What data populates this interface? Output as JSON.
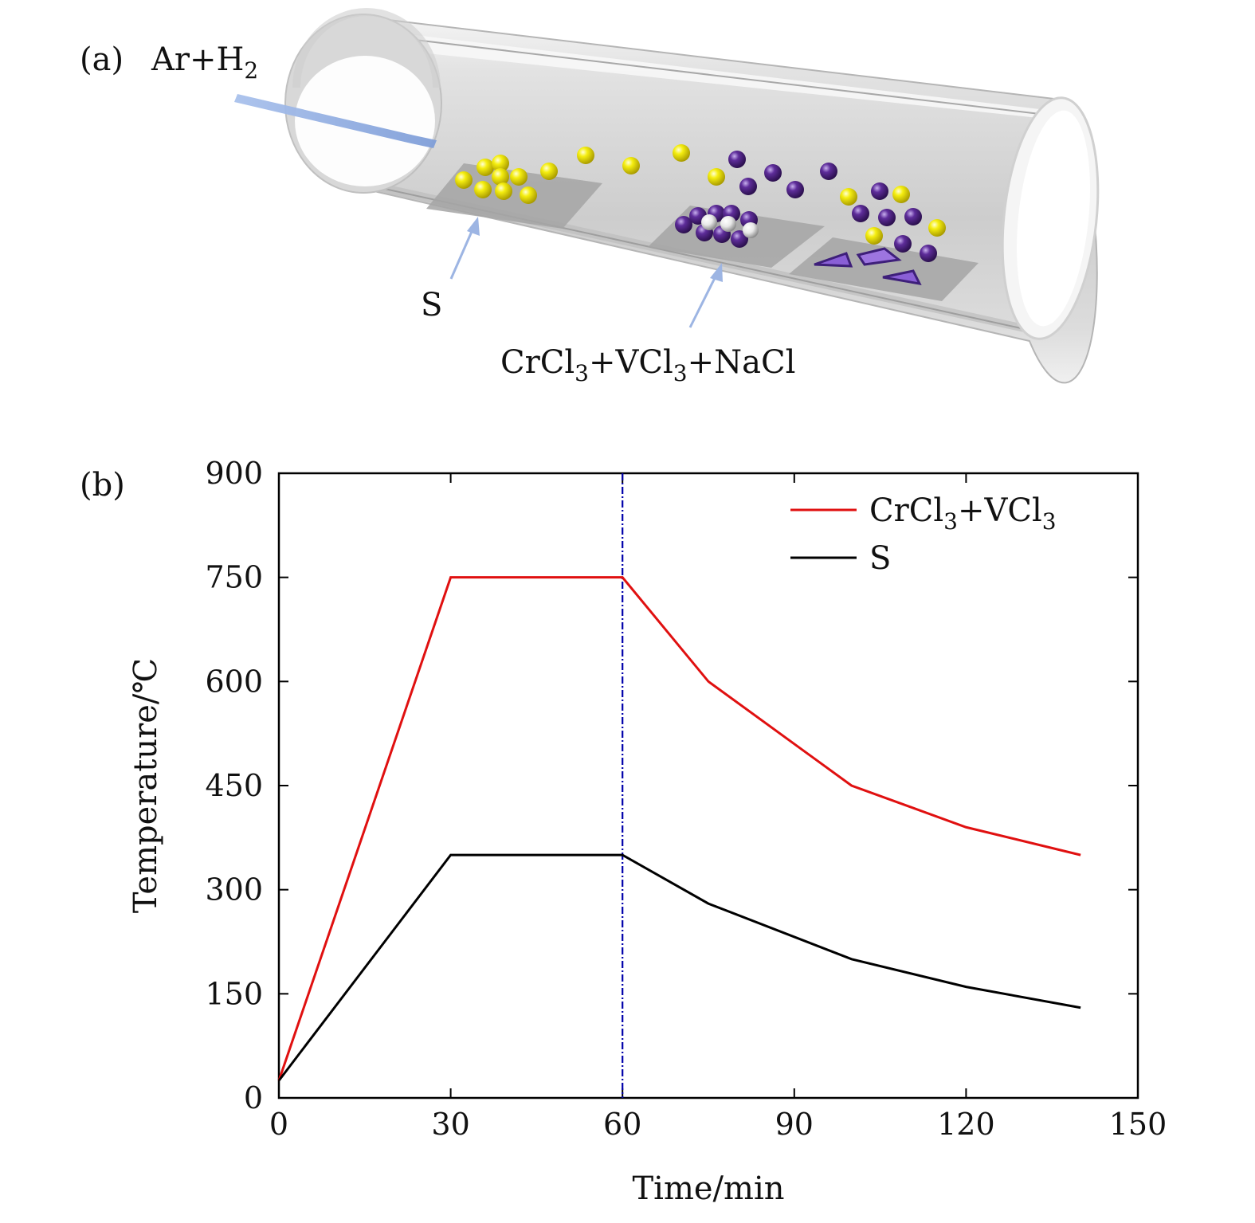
{
  "panel_a": {
    "label": "(a)",
    "gas_label": {
      "main": "Ar+H",
      "sub": "2"
    },
    "s_label": "S",
    "precursor_label": {
      "parts": [
        {
          "t": "CrCl",
          "sub": false
        },
        {
          "t": "3",
          "sub": true
        },
        {
          "t": "+VCl",
          "sub": false
        },
        {
          "t": "3",
          "sub": true
        },
        {
          "t": "+NaCl",
          "sub": false
        }
      ]
    },
    "colors": {
      "sulfur": "#f2ea00",
      "metal": "#5a2a96",
      "salt": "#e8e8e8",
      "arrow": "#9db5e3",
      "tube": "#d9d9d9"
    }
  },
  "panel_b": {
    "label": "(b)",
    "chart_data": {
      "type": "line",
      "xlabel": "Time/min",
      "ylabel": "Temperature/℃",
      "xlim": [
        0,
        150
      ],
      "ylim": [
        0,
        900
      ],
      "xticks": [
        0,
        30,
        60,
        90,
        120,
        150
      ],
      "yticks": [
        0,
        150,
        300,
        450,
        600,
        750,
        900
      ],
      "vline": {
        "x": 60,
        "color": "#0000aa",
        "style": "dash-dot"
      },
      "legend_position": "top-right",
      "series": [
        {
          "name": "CrCl3+VCl3",
          "legend_parts": [
            {
              "t": "CrCl",
              "sub": false
            },
            {
              "t": "3",
              "sub": true
            },
            {
              "t": "+VCl",
              "sub": false
            },
            {
              "t": "3",
              "sub": true
            }
          ],
          "color": "#e01010",
          "x": [
            0,
            30,
            60,
            75,
            100,
            120,
            140
          ],
          "y": [
            25,
            750,
            750,
            600,
            450,
            390,
            350
          ]
        },
        {
          "name": "S",
          "legend_parts": [
            {
              "t": "S",
              "sub": false
            }
          ],
          "color": "#000000",
          "x": [
            0,
            30,
            60,
            75,
            100,
            120,
            140
          ],
          "y": [
            25,
            350,
            350,
            280,
            200,
            160,
            130
          ]
        }
      ]
    }
  }
}
